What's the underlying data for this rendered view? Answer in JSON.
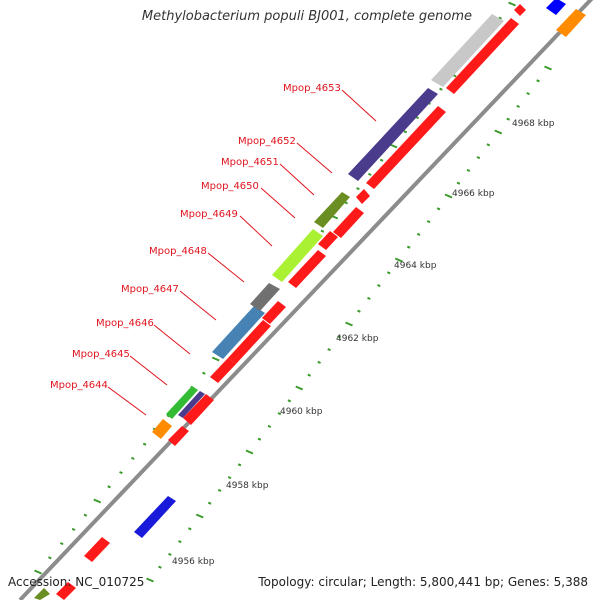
{
  "title": "Methylobacterium populi BJ001, complete genome",
  "accession": "Accession: NC_010725",
  "summary": "Topology: circular; Length: 5,800,441 bp; Genes: 5,388",
  "colors": {
    "backbone": "#8c8c8c",
    "cds": "#ff0000",
    "tick": "#3a9a2a",
    "label": "#e0141e"
  },
  "scale": {
    "major_ticks": [
      {
        "kbp": 4956,
        "label": "4956 kbp"
      },
      {
        "kbp": 4958,
        "label": "4958 kbp"
      },
      {
        "kbp": 4960,
        "label": "4960 kbp"
      },
      {
        "kbp": 4962,
        "label": "4962 kbp"
      },
      {
        "kbp": 4964,
        "label": "4964 kbp"
      },
      {
        "kbp": 4966,
        "label": "4966 kbp"
      },
      {
        "kbp": 4968,
        "label": "4968 kbp"
      }
    ]
  },
  "genes": [
    {
      "name": "Mpop_4644",
      "color": "orange"
    },
    {
      "name": "Mpop_4645",
      "color": "green"
    },
    {
      "name": "Mpop_4646",
      "color": "purple"
    },
    {
      "name": "Mpop_4647",
      "color": "steel-blue"
    },
    {
      "name": "Mpop_4648",
      "color": "gray"
    },
    {
      "name": "Mpop_4649",
      "color": "lime"
    },
    {
      "name": "Mpop_4650",
      "color": "olive"
    },
    {
      "name": "Mpop_4651",
      "color": "olive"
    },
    {
      "name": "Mpop_4652",
      "color": "red"
    },
    {
      "name": "Mpop_4653",
      "color": "purple"
    }
  ]
}
